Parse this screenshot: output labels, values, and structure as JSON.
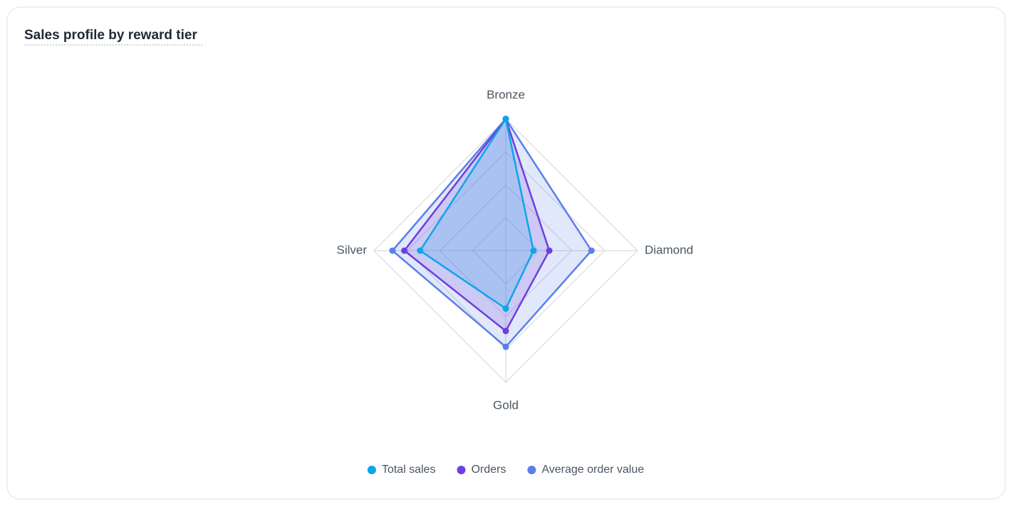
{
  "chart_data": {
    "type": "radar",
    "title": "Sales profile by reward tier",
    "categories": [
      "Bronze",
      "Diamond",
      "Gold",
      "Silver"
    ],
    "rlim": [
      0,
      100
    ],
    "rticks": [
      25,
      50,
      75,
      100
    ],
    "series": [
      {
        "name": "Total sales",
        "color": "#0ea5e9",
        "values": [
          100,
          21,
          44,
          65
        ]
      },
      {
        "name": "Orders",
        "color": "#6d3fe0",
        "values": [
          100,
          33,
          61,
          77
        ]
      },
      {
        "name": "Average order value",
        "color": "#5b7fe8",
        "values": [
          100,
          65,
          73,
          86
        ]
      }
    ],
    "legend": "bottom"
  }
}
